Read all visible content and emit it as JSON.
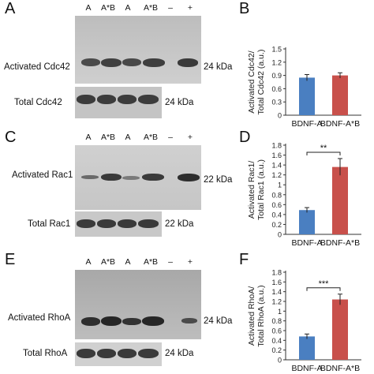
{
  "panels": {
    "A": {
      "letter": "A",
      "lanes": [
        "A",
        "A*B",
        "A",
        "A*B",
        "–",
        "+"
      ],
      "activated_label": "Activated Cdc42",
      "activated_kda": "24 kDa",
      "total_label": "Total Cdc42",
      "total_kda": "24 kDa"
    },
    "C": {
      "letter": "C",
      "lanes": [
        "A",
        "A*B",
        "A",
        "A*B",
        "–",
        "+"
      ],
      "activated_label": "Activated Rac1",
      "activated_kda": "22 kDa",
      "total_label": "Total Rac1",
      "total_kda": "22 kDa"
    },
    "E": {
      "letter": "E",
      "lanes": [
        "A",
        "A*B",
        "A",
        "A*B",
        "–",
        "+"
      ],
      "activated_label": "Activated RhoA",
      "activated_kda": "24 kDa",
      "total_label": "Total RhoA",
      "total_kda": "24 kDa"
    },
    "B": {
      "letter": "B"
    },
    "D": {
      "letter": "D"
    },
    "F": {
      "letter": "F"
    }
  },
  "colors": {
    "blue": "#4a7fc1",
    "red": "#c8504b"
  },
  "chart_data": [
    {
      "type": "bar",
      "panel": "B",
      "categories": [
        "BDNF-A",
        "BDNF-A*B"
      ],
      "values": [
        0.85,
        0.9
      ],
      "errors": [
        0.07,
        0.06
      ],
      "ylabel_lines": [
        "Activated Cdc42/",
        "Total Cdc42 (a.u.)"
      ],
      "ylim": [
        0,
        1.5
      ],
      "yticks": [
        "0",
        "0.3",
        "0.6",
        "0.9",
        "1.2",
        "1.5"
      ],
      "significance": ""
    },
    {
      "type": "bar",
      "panel": "D",
      "categories": [
        "BDNF-A",
        "BDNF-A*B"
      ],
      "values": [
        0.49,
        1.36
      ],
      "errors": [
        0.05,
        0.17
      ],
      "ylabel_lines": [
        "Activated Rac1/",
        "Total Rac1 (a.u.)"
      ],
      "ylim": [
        0,
        1.8
      ],
      "yticks": [
        "0",
        "0.2",
        "0.4",
        "0.6",
        "0.8",
        "1",
        "1.2",
        "1.4",
        "1.6",
        "1.8"
      ],
      "significance": "**"
    },
    {
      "type": "bar",
      "panel": "F",
      "categories": [
        "BDNF-A",
        "BDNF-A*B"
      ],
      "values": [
        0.48,
        1.24
      ],
      "errors": [
        0.05,
        0.11
      ],
      "ylabel_lines": [
        "Activated RhoA/",
        "Total RhoA (a.u.)"
      ],
      "ylim": [
        0,
        1.8
      ],
      "yticks": [
        "0",
        "0.2",
        "0.4",
        "0.6",
        "0.8",
        "1",
        "1.2",
        "1.4",
        "1.6",
        "1.8"
      ],
      "significance": "***"
    }
  ]
}
